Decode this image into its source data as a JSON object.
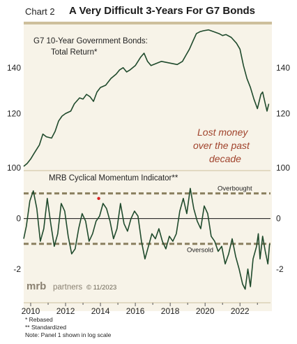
{
  "header": {
    "chart_label": "Chart 2",
    "title": "A Very Difficult 3-Years For G7 Bonds"
  },
  "brand": {
    "logo_text": "mrb",
    "logo_suffix": "partners",
    "copyright": "© 11/2023"
  },
  "footnotes": [
    "*  Rebased",
    "** Standardized",
    "Note: Panel 1 shown in log scale"
  ],
  "colors": {
    "line": "#1f4a2c",
    "reference_line": "#8b8060",
    "annotation": "#a0432c",
    "background": "#f7f3e8",
    "title_rule": "#cdbf9c",
    "marker": "#dd2222"
  },
  "chart_data": [
    {
      "type": "line",
      "title": "G7 10-Year Government Bonds:",
      "subtitle": "Total Return*",
      "scale": "log",
      "ylim": [
        100,
        160
      ],
      "yticks": [
        100,
        120,
        140
      ],
      "ytick_labels": [
        "100",
        "120",
        "140"
      ],
      "annotation": [
        "Lost money",
        "over the past",
        "decade"
      ],
      "grid": false,
      "series": [
        {
          "x": [
            2009.6,
            2009.8,
            2010.0,
            2010.2,
            2010.5,
            2010.7,
            2010.9,
            2011.2,
            2011.4,
            2011.6,
            2011.8,
            2012.0,
            2012.3,
            2012.5,
            2012.8,
            2013.0,
            2013.2,
            2013.4,
            2013.6,
            2013.8,
            2014.0,
            2014.3,
            2014.6,
            2014.9,
            2015.1,
            2015.3,
            2015.5,
            2015.7,
            2016.0,
            2016.3,
            2016.5,
            2016.7,
            2016.9,
            2017.2,
            2017.5,
            2017.8,
            2018.1,
            2018.4,
            2018.7,
            2018.9,
            2019.1,
            2019.3,
            2019.5,
            2019.7,
            2019.9,
            2020.2,
            2020.5,
            2020.8,
            2021.0,
            2021.2,
            2021.5,
            2021.8,
            2022.0,
            2022.2,
            2022.4,
            2022.6,
            2022.8,
            2023.0,
            2023.2,
            2023.3,
            2023.45,
            2023.55,
            2023.65
          ],
          "values": [
            100.5,
            101.5,
            103,
            105,
            108,
            112,
            111,
            110.5,
            113,
            117,
            119,
            120,
            121,
            124,
            126.5,
            126,
            128,
            127,
            125,
            129,
            131,
            132,
            135,
            137,
            139,
            140,
            138,
            139,
            141,
            145,
            147,
            143,
            141,
            142,
            143,
            142.5,
            142,
            141.5,
            143,
            146,
            149,
            153,
            157,
            158,
            158.5,
            159,
            158,
            157,
            156,
            156.5,
            155,
            152,
            149,
            141,
            135,
            131,
            126,
            122,
            128,
            129,
            124,
            121,
            124
          ]
        }
      ]
    },
    {
      "type": "line",
      "title": "MRB Cyclical Momentum Indicator**",
      "ylim": [
        -3.2,
        1.6
      ],
      "yticks": [
        -2,
        0
      ],
      "ytick_labels": [
        "-2",
        "0"
      ],
      "reference_lines": [
        {
          "y": 1.0,
          "label": "Overbought",
          "style": "dashed"
        },
        {
          "y": -1.0,
          "label": "Oversold",
          "style": "dashed"
        },
        {
          "y": 0,
          "style": "solid"
        }
      ],
      "marker": {
        "x": 2013.9,
        "y": 0.8
      },
      "x_ticks": [
        2010,
        2012,
        2014,
        2016,
        2018,
        2020,
        2022
      ],
      "x_tick_labels": [
        "2010",
        "2012",
        "2014",
        "2016",
        "2018",
        "2020",
        "2022"
      ],
      "xlim": [
        2009.6,
        2023.75
      ],
      "grid": false,
      "series": [
        {
          "x": [
            2009.6,
            2009.75,
            2009.95,
            2010.15,
            2010.35,
            2010.55,
            2010.75,
            2010.95,
            2011.15,
            2011.35,
            2011.55,
            2011.75,
            2011.95,
            2012.15,
            2012.35,
            2012.55,
            2012.75,
            2012.95,
            2013.15,
            2013.35,
            2013.55,
            2013.75,
            2013.95,
            2014.15,
            2014.35,
            2014.55,
            2014.75,
            2014.95,
            2015.15,
            2015.35,
            2015.55,
            2015.75,
            2015.95,
            2016.15,
            2016.35,
            2016.55,
            2016.75,
            2016.95,
            2017.15,
            2017.35,
            2017.55,
            2017.75,
            2017.95,
            2018.15,
            2018.35,
            2018.55,
            2018.75,
            2018.95,
            2019.15,
            2019.35,
            2019.55,
            2019.75,
            2019.95,
            2020.15,
            2020.35,
            2020.55,
            2020.75,
            2020.95,
            2021.15,
            2021.35,
            2021.55,
            2021.75,
            2021.95,
            2022.15,
            2022.3,
            2022.45,
            2022.6,
            2022.75,
            2022.95,
            2023.05,
            2023.15,
            2023.3,
            2023.45,
            2023.6,
            2023.7
          ],
          "values": [
            -0.8,
            -0.3,
            0.7,
            1.1,
            0.4,
            -0.9,
            -0.4,
            0.8,
            -0.2,
            -1.1,
            -0.6,
            0.6,
            0.3,
            -0.7,
            -1.4,
            -1.2,
            -0.4,
            0.2,
            -0.1,
            -0.9,
            -0.6,
            -0.1,
            0.1,
            0.6,
            0.4,
            -0.1,
            -0.8,
            -0.4,
            0.6,
            -0.2,
            -0.5,
            0.0,
            0.3,
            0.1,
            -0.9,
            -1.6,
            -1.1,
            -0.6,
            -0.8,
            -0.4,
            -0.9,
            -1.2,
            -0.7,
            -0.9,
            -0.6,
            0.3,
            0.8,
            0.2,
            1.2,
            0.4,
            -0.1,
            -0.4,
            0.5,
            0.2,
            -0.7,
            -0.9,
            -1.3,
            -1.1,
            -1.8,
            -1.4,
            -0.8,
            -1.5,
            -2.0,
            -2.6,
            -2.8,
            -2.0,
            -2.7,
            -1.6,
            -1.1,
            -0.6,
            -1.6,
            -0.7,
            -1.3,
            -1.8,
            -1.0
          ]
        }
      ]
    }
  ]
}
